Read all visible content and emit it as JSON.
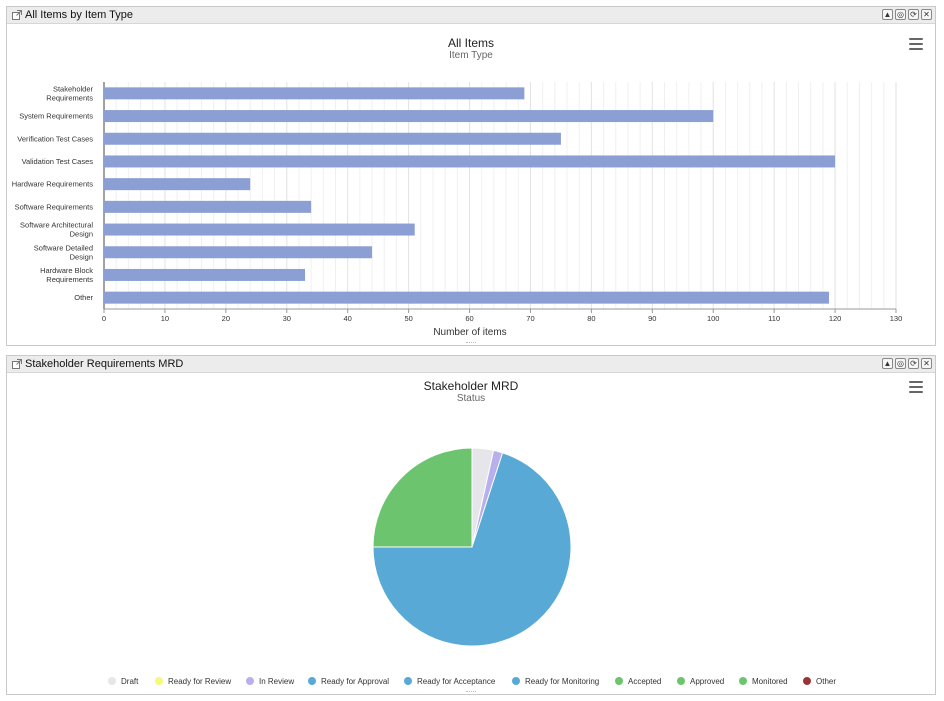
{
  "panel1": {
    "title": "All Items by Item Type",
    "controls": [
      "▲",
      "◎",
      "⟳",
      "✕"
    ],
    "chart_title": "All Items",
    "chart_subtitle": "Item Type"
  },
  "panel2": {
    "title": "Stakeholder Requirements MRD",
    "controls": [
      "▲",
      "◎",
      "⟳",
      "✕"
    ],
    "chart_title": "Stakeholder MRD",
    "chart_subtitle": "Status"
  },
  "chart_data": [
    {
      "type": "bar",
      "orientation": "horizontal",
      "title": "All Items",
      "subtitle": "Item Type",
      "xlabel": "Number of items",
      "ylabel": "",
      "xlim": [
        0,
        130
      ],
      "xticks": [
        "0",
        "10",
        "20",
        "30",
        "40",
        "50",
        "60",
        "70",
        "80",
        "90",
        "100",
        "110",
        "120",
        "130"
      ],
      "grid": true,
      "color": "#8b9fd4",
      "categories": [
        [
          "Stakeholder",
          "Requirements"
        ],
        [
          "System Requirements"
        ],
        [
          "Verification Test Cases"
        ],
        [
          "Validation Test Cases"
        ],
        [
          "Hardware Requirements"
        ],
        [
          "Software Requirements"
        ],
        [
          "Software Architectural",
          "Design"
        ],
        [
          "Software Detailed",
          "Design"
        ],
        [
          "Hardware Block",
          "Requirements"
        ],
        [
          "Other"
        ]
      ],
      "values": [
        69,
        100,
        75,
        120,
        24,
        34,
        51,
        44,
        33,
        119
      ]
    },
    {
      "type": "pie",
      "title": "Stakeholder MRD",
      "subtitle": "Status",
      "legend_position": "bottom",
      "labels": [
        "Draft",
        "Ready for Review",
        "In Review",
        "Ready for Approval",
        "Ready for Acceptance",
        "Ready for Monitoring",
        "Accepted",
        "Approved",
        "Monitored",
        "Other"
      ],
      "colors": [
        "#e6e6ea",
        "#f7f77a",
        "#b7b0ec",
        "#58a9d6",
        "#58a9d6",
        "#58a9d6",
        "#6cc56e",
        "#6cc56e",
        "#6cc56e",
        "#9b3535"
      ],
      "values": [
        3.5,
        0,
        1.5,
        0,
        0,
        70,
        0,
        25,
        0,
        0
      ]
    }
  ]
}
